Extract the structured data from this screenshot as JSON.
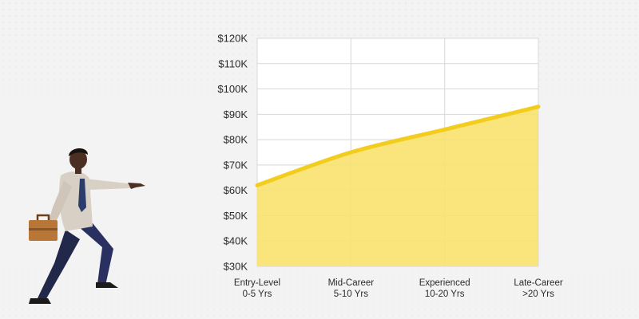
{
  "chart_data": {
    "type": "area",
    "categories": [
      "Entry-Level 0-5 Yrs",
      "Mid-Career 5-10 Yrs",
      "Experienced 10-20 Yrs",
      "Late-Career >20 Yrs"
    ],
    "category_lines": [
      [
        "Entry-Level",
        "0-5 Yrs"
      ],
      [
        "Mid-Career",
        "5-10 Yrs"
      ],
      [
        "Experienced",
        "10-20 Yrs"
      ],
      [
        "Late-Career",
        ">20 Yrs"
      ]
    ],
    "values": [
      62000,
      75000,
      84000,
      93000
    ],
    "ylim": [
      30000,
      120000
    ],
    "yticks": [
      30000,
      40000,
      50000,
      60000,
      70000,
      80000,
      90000,
      100000,
      110000,
      120000
    ],
    "ytick_labels": [
      "$30K",
      "$40K",
      "$50K",
      "$60K",
      "$70K",
      "$80K",
      "$90K",
      "$100K",
      "$110K",
      "$120K"
    ],
    "grid": true,
    "title": "",
    "xlabel": "",
    "ylabel": "",
    "colors": {
      "line": "#f2cd1d",
      "fill": "#f8e26e",
      "grid": "#d8d8d8"
    }
  },
  "illustration": {
    "icon": "businessman-pointing-icon"
  }
}
